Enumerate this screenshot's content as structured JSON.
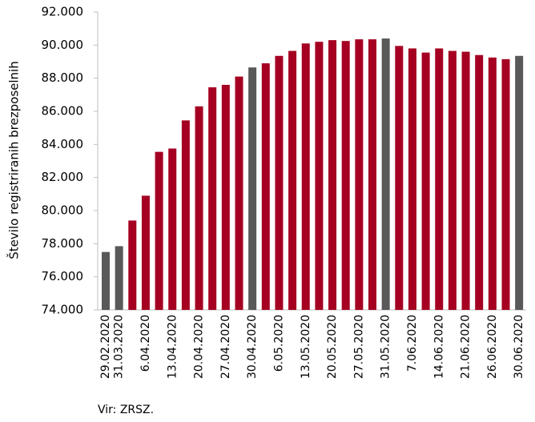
{
  "chart_data": {
    "type": "bar",
    "y_label": "Število registriranih brezposelnih",
    "source": "Vir: ZRSZ.",
    "categories": [
      "29.02.2020",
      "31.03.2020",
      null,
      "6.04.2020",
      null,
      "13.04.2020",
      null,
      "20.04.2020",
      null,
      "27.04.2020",
      null,
      "30.04.2020",
      null,
      "6.05.2020",
      null,
      "13.05.2020",
      null,
      "20.05.2020",
      null,
      "27.05.2020",
      null,
      "31.05.2020",
      null,
      "7.06.2020",
      null,
      "14.06.2020",
      null,
      "21.06.2020",
      null,
      "26.06.2020",
      null,
      "30.06.2020"
    ],
    "values": [
      77500,
      77850,
      79400,
      80900,
      83550,
      83750,
      85450,
      86300,
      87450,
      87600,
      88100,
      88650,
      88900,
      89350,
      89650,
      90100,
      90200,
      90300,
      90250,
      90350,
      90350,
      90400,
      89950,
      89800,
      89550,
      89800,
      89650,
      89600,
      89400,
      89250,
      89150,
      89350
    ],
    "colors": [
      "#595959",
      "#595959",
      "#a50021",
      "#a50021",
      "#a50021",
      "#a50021",
      "#a50021",
      "#a50021",
      "#a50021",
      "#a50021",
      "#a50021",
      "#595959",
      "#a50021",
      "#a50021",
      "#a50021",
      "#a50021",
      "#a50021",
      "#a50021",
      "#a50021",
      "#a50021",
      "#a50021",
      "#595959",
      "#a50021",
      "#a50021",
      "#a50021",
      "#a50021",
      "#a50021",
      "#a50021",
      "#a50021",
      "#a50021",
      "#a50021",
      "#595959"
    ],
    "ylim": [
      74000,
      92000
    ],
    "yticks": [
      {
        "value": 74000,
        "label": "74.000"
      },
      {
        "value": 76000,
        "label": "76.000"
      },
      {
        "value": 78000,
        "label": "78.000"
      },
      {
        "value": 80000,
        "label": "80.000"
      },
      {
        "value": 82000,
        "label": "82.000"
      },
      {
        "value": 84000,
        "label": "84.000"
      },
      {
        "value": 86000,
        "label": "86.000"
      },
      {
        "value": 88000,
        "label": "88.000"
      },
      {
        "value": 90000,
        "label": "90.000"
      },
      {
        "value": 92000,
        "label": "92.000"
      }
    ]
  }
}
